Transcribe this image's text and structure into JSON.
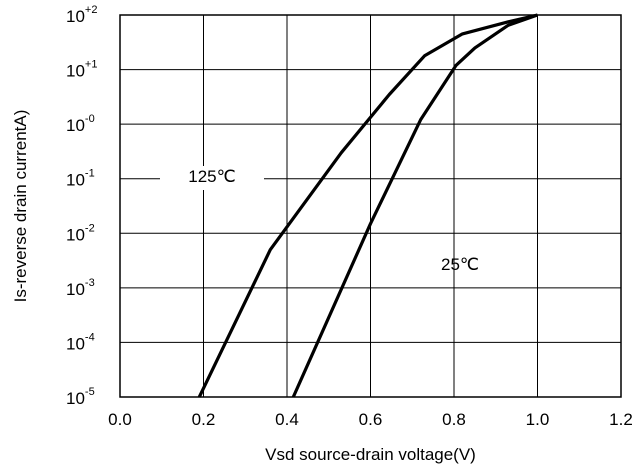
{
  "chart_data": {
    "type": "line",
    "title": "",
    "xlabel": "Vsd source-drain voltage(V)",
    "ylabel": "Is-reverse drain currentA)",
    "x_scale": "linear",
    "y_scale": "log",
    "xlim": [
      0.0,
      1.2
    ],
    "ylim_exponent": [
      -5,
      2
    ],
    "grid": true,
    "x_ticks": [
      "0.0",
      "0.2",
      "0.4",
      "0.6",
      "0.8",
      "1.0",
      "1.2"
    ],
    "y_ticks": [
      {
        "value": -5,
        "base": "10",
        "exp": "-5"
      },
      {
        "value": -4,
        "base": "10",
        "exp": "-4"
      },
      {
        "value": -3,
        "base": "10",
        "exp": "-3"
      },
      {
        "value": -2,
        "base": "10",
        "exp": "-2"
      },
      {
        "value": -1,
        "base": "10",
        "exp": "-1"
      },
      {
        "value": 0,
        "base": "10",
        "exp": "-0"
      },
      {
        "value": 1,
        "base": "10",
        "exp": "+1"
      },
      {
        "value": 2,
        "base": "10",
        "exp": "+2"
      }
    ],
    "series": [
      {
        "label": "125℃",
        "color": "#000000",
        "points": [
          {
            "x": 0.19,
            "y": 1e-05
          },
          {
            "x": 0.36,
            "y": 0.005
          },
          {
            "x": 0.53,
            "y": 0.3
          },
          {
            "x": 0.645,
            "y": 3.5
          },
          {
            "x": 0.73,
            "y": 18
          },
          {
            "x": 0.82,
            "y": 45
          },
          {
            "x": 0.93,
            "y": 75
          },
          {
            "x": 1.0,
            "y": 100
          }
        ]
      },
      {
        "label": "25℃",
        "color": "#000000",
        "points": [
          {
            "x": 0.415,
            "y": 1e-05
          },
          {
            "x": 0.6,
            "y": 0.015
          },
          {
            "x": 0.72,
            "y": 1.2
          },
          {
            "x": 0.805,
            "y": 12
          },
          {
            "x": 0.85,
            "y": 25
          },
          {
            "x": 0.93,
            "y": 65
          },
          {
            "x": 1.0,
            "y": 100
          }
        ]
      }
    ]
  }
}
